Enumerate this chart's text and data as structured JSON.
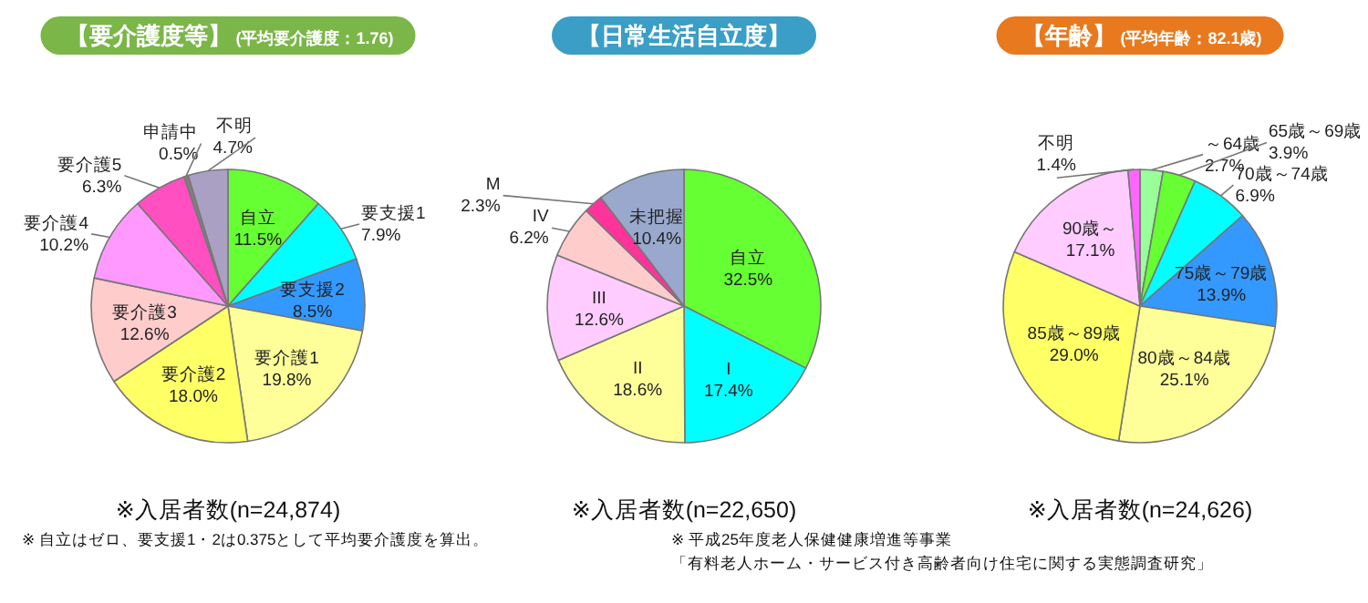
{
  "chart_data": [
    {
      "type": "pie",
      "title": "【要介護度等】",
      "subtitle": "(平均要介護度：1.76)",
      "categories": [
        "自立",
        "要支援1",
        "要支援2",
        "要介護1",
        "要介護2",
        "要介護3",
        "要介護4",
        "要介護5",
        "申請中",
        "不明"
      ],
      "values": [
        11.5,
        7.9,
        8.5,
        19.8,
        18.0,
        12.6,
        10.2,
        6.3,
        0.5,
        4.7
      ],
      "value_labels": [
        "11.5%",
        "7.9%",
        "8.5%",
        "19.8%",
        "18.0%",
        "12.6%",
        "10.2%",
        "6.3%",
        "0.5%",
        "4.7%"
      ],
      "colors": [
        "#66ff33",
        "#00ffff",
        "#3399ff",
        "#ffff99",
        "#ffff66",
        "#ffcccc",
        "#ff99ff",
        "#ff4fc0",
        "#808080",
        "#a9a0c4"
      ],
      "annotations": [
        "※入居者数(n=24,874)",
        "※ 自立はゼロ、要支援1・2は0.375として平均要介護度を算出。"
      ]
    },
    {
      "type": "pie",
      "title": "【日常生活自立度】",
      "categories": [
        "自立",
        "I",
        "II",
        "III",
        "IV",
        "M",
        "未把握"
      ],
      "values": [
        32.5,
        17.4,
        18.6,
        12.6,
        6.2,
        2.3,
        10.4
      ],
      "value_labels": [
        "32.5%",
        "17.4%",
        "18.6%",
        "12.6%",
        "6.2%",
        "2.3%",
        "10.4%"
      ],
      "colors": [
        "#66ff33",
        "#00ffff",
        "#ffff99",
        "#ffccff",
        "#ffcccc",
        "#ff3399",
        "#99a8cc"
      ],
      "annotations": [
        "※入居者数(n=22,650)",
        "※ 平成25年度老人保健健康増進等事業",
        "「有料老人ホーム・サービス付き高齢者向け住宅に関する実態調査研究」"
      ]
    },
    {
      "type": "pie",
      "title": "【年齢】",
      "subtitle": "(平均年齢：82.1歳)",
      "categories": [
        "～64歳",
        "65歳～69歳",
        "70歳～74歳",
        "75歳～79歳",
        "80歳～84歳",
        "85歳～89歳",
        "90歳～",
        "不明"
      ],
      "values": [
        2.7,
        3.9,
        6.9,
        13.9,
        25.1,
        29.0,
        17.1,
        1.4
      ],
      "value_labels": [
        "2.7%",
        "3.9%",
        "6.9%",
        "13.9%",
        "25.1%",
        "29.0%",
        "17.1%",
        "1.4%"
      ],
      "colors": [
        "#99ff99",
        "#66ff33",
        "#00ffff",
        "#3399ff",
        "#ffff99",
        "#ffff66",
        "#ffccff",
        "#ff66ff"
      ],
      "annotations": [
        "※入居者数(n=24,626)"
      ]
    }
  ]
}
